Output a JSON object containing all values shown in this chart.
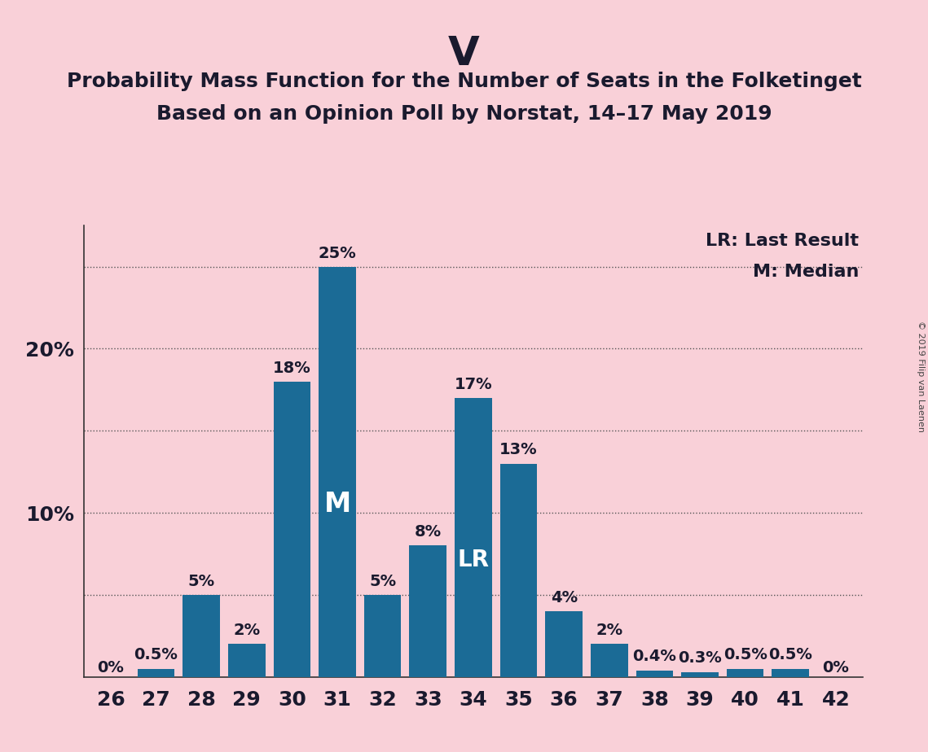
{
  "title_main": "V",
  "title_sub1": "Probability Mass Function for the Number of Seats in the Folketinget",
  "title_sub2": "Based on an Opinion Poll by Norstat, 14–17 May 2019",
  "copyright": "© 2019 Filip van Laenen",
  "categories": [
    26,
    27,
    28,
    29,
    30,
    31,
    32,
    33,
    34,
    35,
    36,
    37,
    38,
    39,
    40,
    41,
    42
  ],
  "values": [
    0.0,
    0.5,
    5.0,
    2.0,
    18.0,
    25.0,
    5.0,
    8.0,
    17.0,
    13.0,
    4.0,
    2.0,
    0.4,
    0.3,
    0.5,
    0.5,
    0.0
  ],
  "labels": [
    "0%",
    "0.5%",
    "5%",
    "2%",
    "18%",
    "25%",
    "5%",
    "8%",
    "17%",
    "13%",
    "4%",
    "2%",
    "0.4%",
    "0.3%",
    "0.5%",
    "0.5%",
    "0%"
  ],
  "bar_color": "#1b6b96",
  "background_color": "#f9d0d8",
  "median_seat": 31,
  "last_result_seat": 34,
  "median_label": "M",
  "lr_label": "LR",
  "legend_lr": "LR: Last Result",
  "legend_m": "M: Median",
  "yticks": [
    10,
    20
  ],
  "dotted_lines_y": [
    5.0,
    10.0,
    15.0,
    20.0,
    25.0
  ],
  "ylim": [
    0,
    27.5
  ],
  "title_fontsize": 36,
  "subtitle_fontsize": 18,
  "bar_label_fontsize": 14,
  "inside_label_fontsize_M": 24,
  "inside_label_fontsize_LR": 20,
  "legend_fontsize": 16,
  "tick_fontsize": 18,
  "copyright_fontsize": 8
}
